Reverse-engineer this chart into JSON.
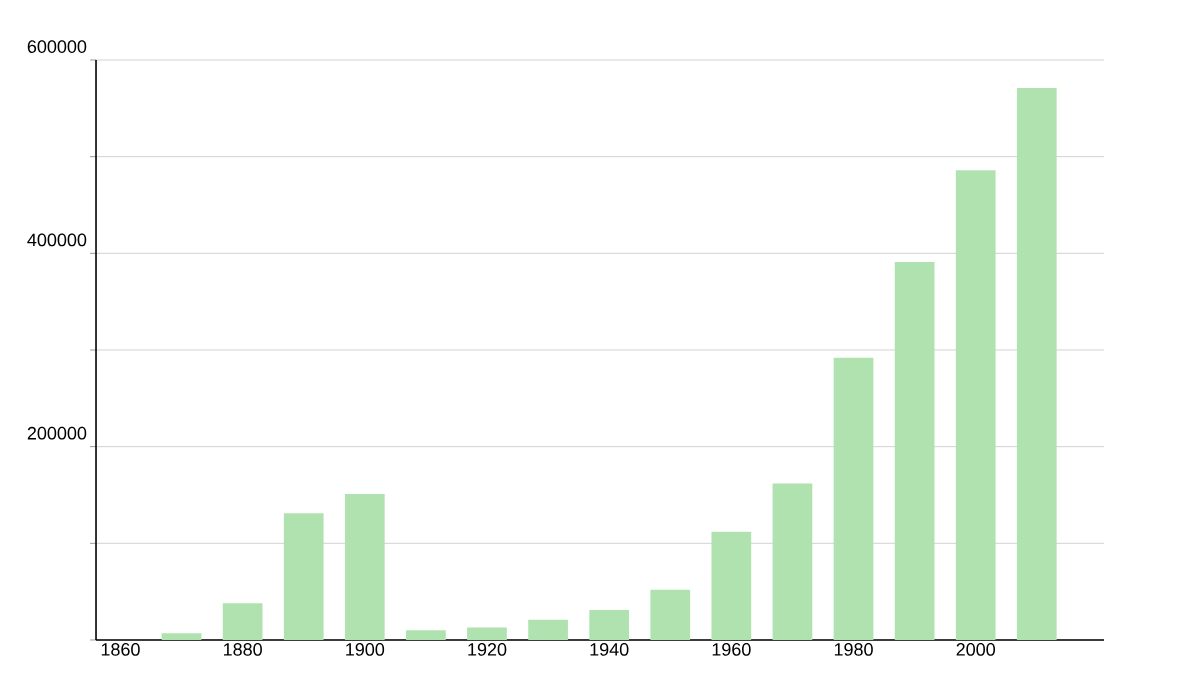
{
  "chart_data": {
    "type": "bar",
    "x": [
      1870,
      1880,
      1890,
      1900,
      1910,
      1920,
      1930,
      1940,
      1950,
      1960,
      1970,
      1980,
      1990,
      2000,
      2010
    ],
    "values": [
      7000,
      38000,
      131000,
      151000,
      10000,
      13000,
      21000,
      31000,
      52000,
      112000,
      162000,
      292000,
      391000,
      486000,
      571000
    ],
    "color": "#b0e2b0",
    "xlim": [
      1856,
      2021
    ],
    "xticks": [
      1860,
      1880,
      1900,
      1920,
      1940,
      1960,
      1980,
      2000
    ],
    "ylim": [
      0,
      600000
    ],
    "yticks": [
      {
        "value": 0,
        "label": null
      },
      {
        "value": 100000,
        "label": null
      },
      200000,
      {
        "value": 300000,
        "label": null
      },
      400000,
      {
        "value": 500000,
        "label": null
      },
      600000
    ],
    "grid": "y"
  }
}
